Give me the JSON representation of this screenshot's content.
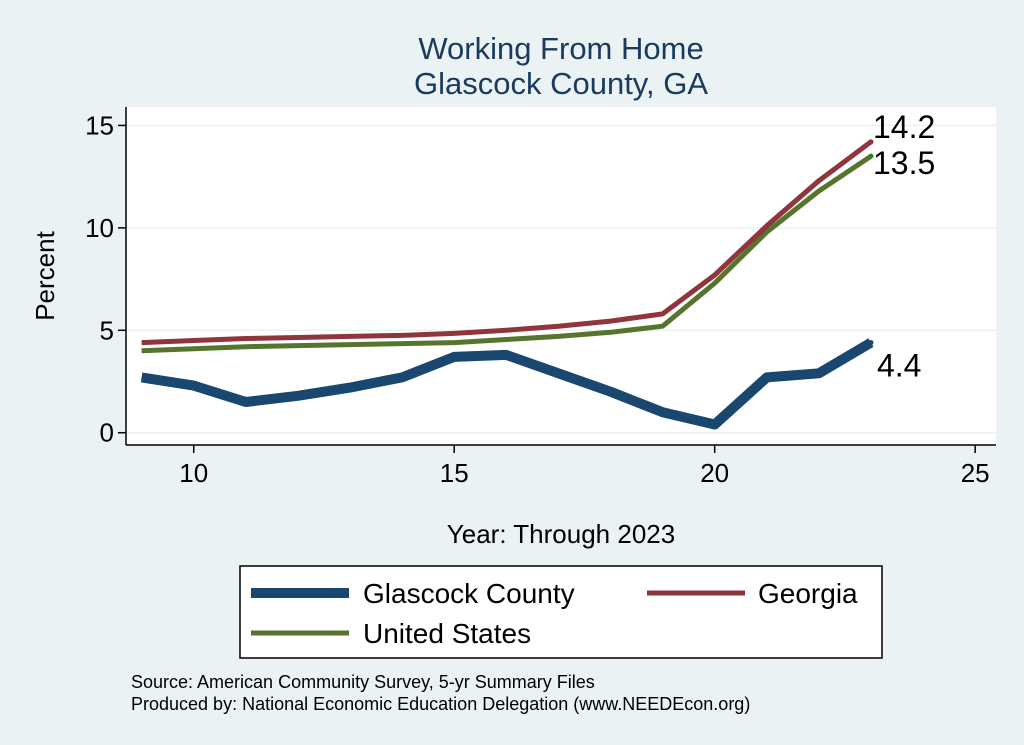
{
  "chart_data": {
    "type": "line",
    "title": [
      "Working From Home",
      "Glascock County, GA"
    ],
    "xlabel": "Year: Through 2023",
    "ylabel": "Percent",
    "xlim": [
      8.7,
      25.4
    ],
    "ylim": [
      -0.6,
      15.9
    ],
    "xticks": [
      10,
      15,
      20,
      25
    ],
    "yticks": [
      0,
      5,
      10,
      15
    ],
    "grid": true,
    "legend": "bottom",
    "series": [
      {
        "name": "Glascock County",
        "color": "#1a476f",
        "x": [
          9,
          10,
          11,
          12,
          13,
          14,
          15,
          16,
          17,
          18,
          19,
          20,
          21,
          22,
          23
        ],
        "y": [
          2.7,
          2.3,
          1.5,
          1.8,
          2.2,
          2.7,
          3.7,
          3.8,
          2.9,
          2.0,
          1.0,
          0.4,
          2.7,
          2.9,
          4.4
        ],
        "end_label": "4.4"
      },
      {
        "name": "Georgia",
        "color": "#90353b",
        "x": [
          9,
          10,
          11,
          12,
          13,
          14,
          15,
          16,
          17,
          18,
          19,
          20,
          21,
          22,
          23
        ],
        "y": [
          4.4,
          4.5,
          4.6,
          4.65,
          4.7,
          4.75,
          4.85,
          5.0,
          5.2,
          5.45,
          5.8,
          7.7,
          10.1,
          12.3,
          14.2
        ],
        "end_label": "14.2"
      },
      {
        "name": "United States",
        "color": "#55752f",
        "x": [
          9,
          10,
          11,
          12,
          13,
          14,
          15,
          16,
          17,
          18,
          19,
          20,
          21,
          22,
          23
        ],
        "y": [
          4.0,
          4.1,
          4.2,
          4.25,
          4.3,
          4.35,
          4.4,
          4.55,
          4.7,
          4.9,
          5.2,
          7.3,
          9.8,
          11.8,
          13.5
        ],
        "end_label": "13.5"
      }
    ]
  },
  "footer": {
    "source": "Source: American Community Survey, 5-yr Summary Files",
    "produced_by": "Produced by: National Economic Education Delegation (www.NEEDEcon.org)"
  }
}
